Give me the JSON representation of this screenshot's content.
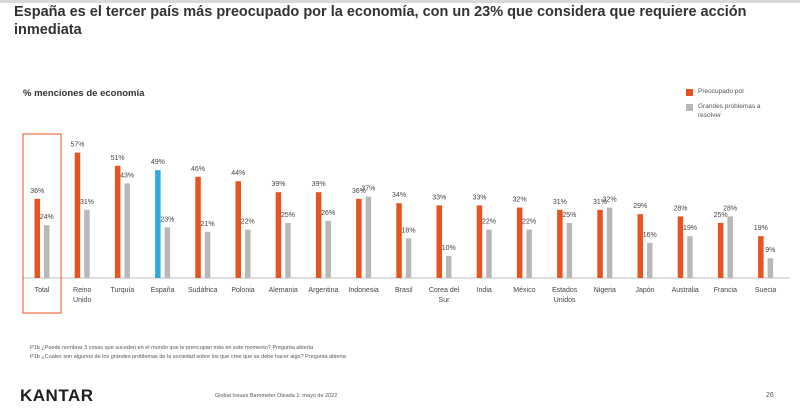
{
  "title": "España es el tercer país más preocupado por la economía, con un 23% que considera que requiere acción inmediata",
  "subtitle": "% menciones de economía",
  "colors": {
    "preocupado": "#e8541f",
    "grandes": "#b8b8b8",
    "highlight": "#29abe2",
    "total_box": "#e8541f"
  },
  "chart_data": {
    "type": "bar",
    "ylabel": "",
    "ylim": [
      0,
      57
    ],
    "categories": [
      "Total",
      "Reino Unido",
      "Turquía",
      "España",
      "Sudáfrica",
      "Polonia",
      "Alemania",
      "Argentina",
      "Indonesia",
      "Brasil",
      "Corea del Sur",
      "India",
      "México",
      "Estados Unidos",
      "Nigeria",
      "Japón",
      "Australia",
      "Francia",
      "Suecia"
    ],
    "series": [
      {
        "name": "Preocupado por",
        "values": [
          36,
          57,
          51,
          49,
          46,
          44,
          39,
          39,
          36,
          34,
          33,
          33,
          32,
          31,
          31,
          29,
          28,
          25,
          19
        ]
      },
      {
        "name": "Grandes problemas a resolver",
        "values": [
          24,
          31,
          43,
          23,
          21,
          22,
          25,
          26,
          37,
          18,
          10,
          22,
          22,
          25,
          32,
          16,
          19,
          28,
          9
        ]
      }
    ],
    "highlight_category": "España",
    "boxed_category": "Total",
    "legend": "top-right"
  },
  "notes": [
    "P1b ¿Puede nombrar 3 cosas que suceden en el mundo que le preocupan más en este momento? Pregunta abierta",
    "P1b ¿Cuáles son algunos de los grandes problemas de la sociedad sobre los que cree que se debe hacer algo? Pregunta abierta"
  ],
  "footer": {
    "logo": "KANTAR",
    "source": "Global Issues Barometer Oleada 1: mayo de 2022",
    "page": "26"
  }
}
